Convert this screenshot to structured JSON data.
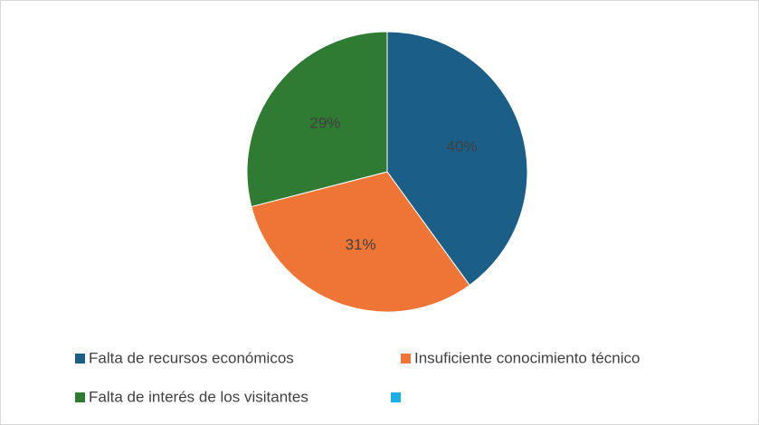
{
  "chart_data": {
    "type": "pie",
    "categories": [
      "Falta de recursos económicos",
      "Insuficiente conocimiento técnico",
      "Falta de interés de los visitantes",
      null
    ],
    "values": [
      40,
      31,
      29,
      0
    ],
    "value_labels": [
      "40%",
      "31%",
      "29%",
      null
    ],
    "colors": [
      "#1b5f89",
      "#ee7535",
      "#2f7b33",
      "#1eaee6"
    ],
    "legend": "bottom"
  }
}
